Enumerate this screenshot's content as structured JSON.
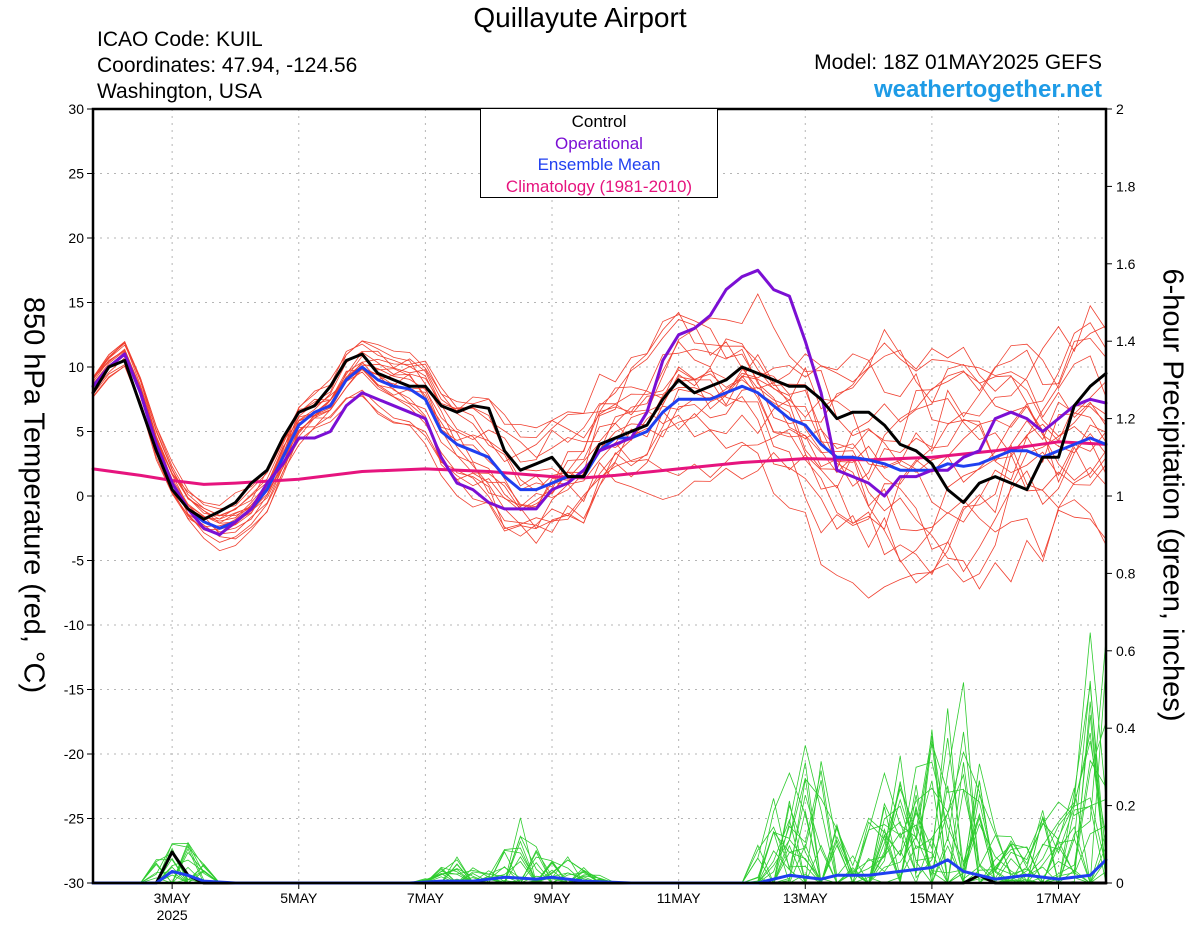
{
  "header": {
    "title": "Quillayute Airport",
    "icao": "ICAO Code: KUIL",
    "coords": "Coordinates: 47.94, -124.56",
    "region": "Washington, USA",
    "model": "Model: 18Z 01MAY2025 GEFS",
    "site": "weathertogether.net"
  },
  "colors": {
    "control": "#000000",
    "operational": "#7b0fd4",
    "ensemble_mean": "#1f3ff0",
    "climatology": "#e6147e",
    "members_temp": "#f04030",
    "members_precip": "#2ecc2e",
    "site": "#1e9be6"
  },
  "chart_data": {
    "type": "line",
    "title": "Quillayute Airport",
    "ylabel": "850 hPa Temperature (red, °C)",
    "y2label": "6-hour Precipitation (green, inches)",
    "ylim": [
      -30,
      30
    ],
    "y2lim": [
      0,
      2
    ],
    "yticks": [
      "30",
      "25",
      "20",
      "15",
      "10",
      "5",
      "0",
      "-5",
      "-10",
      "-15",
      "-20",
      "-25",
      "-30"
    ],
    "y2ticks": [
      "2",
      "1.8",
      "1.6",
      "1.4",
      "1.2",
      "1",
      "0.8",
      "0.6",
      "0.4",
      "0.2",
      "0"
    ],
    "xticks": [
      {
        "day": 3,
        "label": "3MAY",
        "sub": "2025"
      },
      {
        "day": 5,
        "label": "5MAY"
      },
      {
        "day": 7,
        "label": "7MAY"
      },
      {
        "day": 9,
        "label": "9MAY"
      },
      {
        "day": 11,
        "label": "11MAY"
      },
      {
        "day": 13,
        "label": "13MAY"
      },
      {
        "day": 15,
        "label": "15MAY"
      },
      {
        "day": 17,
        "label": "17MAY"
      }
    ],
    "xlim": [
      1.75,
      17.75
    ],
    "grid": true,
    "legend": {
      "position": "top-center",
      "entries": [
        {
          "label": "Control",
          "color": "#000000"
        },
        {
          "label": "Operational",
          "color": "#7b0fd4"
        },
        {
          "label": "Ensemble Mean",
          "color": "#1f3ff0"
        },
        {
          "label": "Climatology (1981-2010)",
          "color": "#e6147e"
        }
      ]
    },
    "temperature_series": [
      {
        "name": "Control",
        "color": "#000000",
        "width": 3,
        "points": [
          [
            1.75,
            8
          ],
          [
            2.0,
            10
          ],
          [
            2.25,
            10.5
          ],
          [
            2.5,
            7
          ],
          [
            2.75,
            3.5
          ],
          [
            3.0,
            0.5
          ],
          [
            3.25,
            -1
          ],
          [
            3.5,
            -1.8
          ],
          [
            3.75,
            -1.2
          ],
          [
            4.0,
            -0.5
          ],
          [
            4.25,
            1
          ],
          [
            4.5,
            2
          ],
          [
            4.75,
            4.5
          ],
          [
            5.0,
            6.5
          ],
          [
            5.25,
            7
          ],
          [
            5.5,
            8.5
          ],
          [
            5.75,
            10.5
          ],
          [
            6.0,
            11
          ],
          [
            6.25,
            9.5
          ],
          [
            6.5,
            9
          ],
          [
            6.75,
            8.5
          ],
          [
            7.0,
            8.5
          ],
          [
            7.25,
            7
          ],
          [
            7.5,
            6.5
          ],
          [
            7.75,
            7
          ],
          [
            8.0,
            6.8
          ],
          [
            8.25,
            3.5
          ],
          [
            8.5,
            2
          ],
          [
            8.75,
            2.5
          ],
          [
            9.0,
            3
          ],
          [
            9.25,
            1.5
          ],
          [
            9.5,
            1.5
          ],
          [
            9.75,
            4
          ],
          [
            10.0,
            4.5
          ],
          [
            10.25,
            5
          ],
          [
            10.5,
            5.5
          ],
          [
            10.75,
            7.5
          ],
          [
            11.0,
            9
          ],
          [
            11.25,
            8
          ],
          [
            11.5,
            8.5
          ],
          [
            11.75,
            9
          ],
          [
            12.0,
            10
          ],
          [
            12.25,
            9.5
          ],
          [
            12.5,
            9
          ],
          [
            12.75,
            8.5
          ],
          [
            13.0,
            8.5
          ],
          [
            13.25,
            7.5
          ],
          [
            13.5,
            6
          ],
          [
            13.75,
            6.5
          ],
          [
            14.0,
            6.5
          ],
          [
            14.25,
            5.5
          ],
          [
            14.5,
            4
          ],
          [
            14.75,
            3.5
          ],
          [
            15.0,
            2.5
          ],
          [
            15.25,
            0.5
          ],
          [
            15.5,
            -0.5
          ],
          [
            15.75,
            1
          ],
          [
            16.0,
            1.5
          ],
          [
            16.25,
            1
          ],
          [
            16.5,
            0.5
          ],
          [
            16.75,
            3
          ],
          [
            17.0,
            3
          ],
          [
            17.25,
            7
          ],
          [
            17.5,
            8.5
          ],
          [
            17.75,
            9.5
          ]
        ]
      },
      {
        "name": "Operational",
        "color": "#7b0fd4",
        "width": 3,
        "points": [
          [
            1.75,
            8.5
          ],
          [
            2.0,
            10
          ],
          [
            2.25,
            11
          ],
          [
            2.5,
            8
          ],
          [
            2.75,
            4
          ],
          [
            3.0,
            1
          ],
          [
            3.25,
            -1
          ],
          [
            3.5,
            -2.5
          ],
          [
            3.75,
            -3
          ],
          [
            4.0,
            -2
          ],
          [
            4.25,
            -1
          ],
          [
            4.5,
            1
          ],
          [
            4.75,
            2.5
          ],
          [
            5.0,
            4.5
          ],
          [
            5.25,
            4.5
          ],
          [
            5.5,
            5
          ],
          [
            5.75,
            7
          ],
          [
            6.0,
            8
          ],
          [
            6.25,
            7.5
          ],
          [
            6.5,
            7
          ],
          [
            6.75,
            6.5
          ],
          [
            7.0,
            6
          ],
          [
            7.25,
            3
          ],
          [
            7.5,
            1
          ],
          [
            7.75,
            0.5
          ],
          [
            8.0,
            -0.5
          ],
          [
            8.25,
            -1
          ],
          [
            8.5,
            -1
          ],
          [
            8.75,
            -1
          ],
          [
            9.0,
            0.5
          ],
          [
            9.25,
            1
          ],
          [
            9.5,
            2
          ],
          [
            9.75,
            3.5
          ],
          [
            10.0,
            4
          ],
          [
            10.25,
            4.5
          ],
          [
            10.5,
            6.5
          ],
          [
            10.75,
            10.5
          ],
          [
            11.0,
            12.5
          ],
          [
            11.25,
            13
          ],
          [
            11.5,
            14
          ],
          [
            11.75,
            16
          ],
          [
            12.0,
            17
          ],
          [
            12.25,
            17.5
          ],
          [
            12.5,
            16
          ],
          [
            12.75,
            15.5
          ],
          [
            13.0,
            12
          ],
          [
            13.25,
            8
          ],
          [
            13.5,
            2
          ],
          [
            13.75,
            1.5
          ],
          [
            14.0,
            1
          ],
          [
            14.25,
            0
          ],
          [
            14.5,
            1.5
          ],
          [
            14.75,
            1.5
          ],
          [
            15.0,
            2
          ],
          [
            15.25,
            2
          ],
          [
            15.5,
            3
          ],
          [
            15.75,
            3.5
          ],
          [
            16.0,
            6
          ],
          [
            16.25,
            6.5
          ],
          [
            16.5,
            6
          ],
          [
            16.75,
            5
          ],
          [
            17.0,
            6
          ],
          [
            17.25,
            7
          ],
          [
            17.5,
            7.5
          ],
          [
            17.75,
            7.2
          ]
        ]
      },
      {
        "name": "Ensemble Mean",
        "color": "#1f3ff0",
        "width": 3,
        "points": [
          [
            1.75,
            8.5
          ],
          [
            2.0,
            10
          ],
          [
            2.25,
            11
          ],
          [
            2.5,
            8
          ],
          [
            2.75,
            4
          ],
          [
            3.0,
            1
          ],
          [
            3.25,
            -1
          ],
          [
            3.5,
            -2
          ],
          [
            3.75,
            -2.5
          ],
          [
            4.0,
            -2
          ],
          [
            4.25,
            -1
          ],
          [
            4.5,
            0.5
          ],
          [
            4.75,
            3
          ],
          [
            5.0,
            5.5
          ],
          [
            5.25,
            6.5
          ],
          [
            5.5,
            7
          ],
          [
            5.75,
            9
          ],
          [
            6.0,
            10
          ],
          [
            6.25,
            9
          ],
          [
            6.5,
            8.5
          ],
          [
            6.75,
            8.3
          ],
          [
            7.0,
            7.5
          ],
          [
            7.25,
            5
          ],
          [
            7.5,
            4
          ],
          [
            7.75,
            3.5
          ],
          [
            8.0,
            3
          ],
          [
            8.25,
            1.5
          ],
          [
            8.5,
            0.5
          ],
          [
            8.75,
            0.5
          ],
          [
            9.0,
            1
          ],
          [
            9.25,
            1.5
          ],
          [
            9.5,
            1.5
          ],
          [
            9.75,
            3.5
          ],
          [
            10.0,
            4.5
          ],
          [
            10.25,
            4.5
          ],
          [
            10.5,
            5
          ],
          [
            10.75,
            6.5
          ],
          [
            11.0,
            7.5
          ],
          [
            11.25,
            7.5
          ],
          [
            11.5,
            7.5
          ],
          [
            11.75,
            8
          ],
          [
            12.0,
            8.5
          ],
          [
            12.25,
            8
          ],
          [
            12.5,
            7
          ],
          [
            12.75,
            6
          ],
          [
            13.0,
            5.5
          ],
          [
            13.25,
            4
          ],
          [
            13.5,
            3
          ],
          [
            13.75,
            3
          ],
          [
            14.0,
            2.8
          ],
          [
            14.25,
            2.5
          ],
          [
            14.5,
            2
          ],
          [
            14.75,
            2
          ],
          [
            15.0,
            2
          ],
          [
            15.25,
            2.5
          ],
          [
            15.5,
            2.3
          ],
          [
            15.75,
            2.5
          ],
          [
            16.0,
            3
          ],
          [
            16.25,
            3.5
          ],
          [
            16.5,
            3.5
          ],
          [
            16.75,
            3
          ],
          [
            17.0,
            3.5
          ],
          [
            17.25,
            4
          ],
          [
            17.5,
            4.5
          ],
          [
            17.75,
            4
          ]
        ]
      },
      {
        "name": "Climatology (1981-2010)",
        "color": "#e6147e",
        "width": 3,
        "points": [
          [
            1.75,
            2.1
          ],
          [
            2.5,
            1.6
          ],
          [
            3.0,
            1.2
          ],
          [
            3.5,
            0.9
          ],
          [
            4.0,
            1.0
          ],
          [
            5.0,
            1.3
          ],
          [
            6.0,
            1.9
          ],
          [
            7.0,
            2.1
          ],
          [
            8.0,
            1.9
          ],
          [
            9.0,
            1.5
          ],
          [
            9.5,
            1.4
          ],
          [
            10.0,
            1.6
          ],
          [
            11.0,
            2.1
          ],
          [
            12.0,
            2.6
          ],
          [
            13.0,
            2.9
          ],
          [
            14.0,
            2.8
          ],
          [
            15.0,
            3.0
          ],
          [
            16.0,
            3.5
          ],
          [
            17.0,
            4.2
          ],
          [
            17.75,
            4.0
          ]
        ]
      }
    ],
    "precip_series": [
      {
        "name": "Control",
        "color": "#000000",
        "width": 3,
        "points": [
          [
            1.75,
            0
          ],
          [
            2.75,
            0
          ],
          [
            3.0,
            0.08
          ],
          [
            3.25,
            0.02
          ],
          [
            3.5,
            0
          ],
          [
            15.5,
            0
          ],
          [
            15.75,
            0.02
          ],
          [
            16.0,
            0
          ],
          [
            17.75,
            0
          ]
        ]
      },
      {
        "name": "Ensemble Mean",
        "color": "#1f3ff0",
        "width": 3,
        "points": [
          [
            1.75,
            0
          ],
          [
            2.75,
            0
          ],
          [
            3.0,
            0.03
          ],
          [
            3.25,
            0.02
          ],
          [
            3.5,
            0.005
          ],
          [
            4.0,
            0
          ],
          [
            6.75,
            0
          ],
          [
            7.25,
            0.005
          ],
          [
            7.75,
            0.005
          ],
          [
            8.25,
            0.015
          ],
          [
            8.75,
            0.01
          ],
          [
            9.0,
            0.015
          ],
          [
            9.5,
            0.005
          ],
          [
            10.25,
            0
          ],
          [
            12.25,
            0
          ],
          [
            12.75,
            0.02
          ],
          [
            13.25,
            0.01
          ],
          [
            13.5,
            0.02
          ],
          [
            14.0,
            0.02
          ],
          [
            14.5,
            0.03
          ],
          [
            15.0,
            0.04
          ],
          [
            15.25,
            0.06
          ],
          [
            15.5,
            0.03
          ],
          [
            16.0,
            0.01
          ],
          [
            16.5,
            0.02
          ],
          [
            17.0,
            0.01
          ],
          [
            17.5,
            0.02
          ],
          [
            17.75,
            0.06
          ]
        ]
      }
    ]
  }
}
